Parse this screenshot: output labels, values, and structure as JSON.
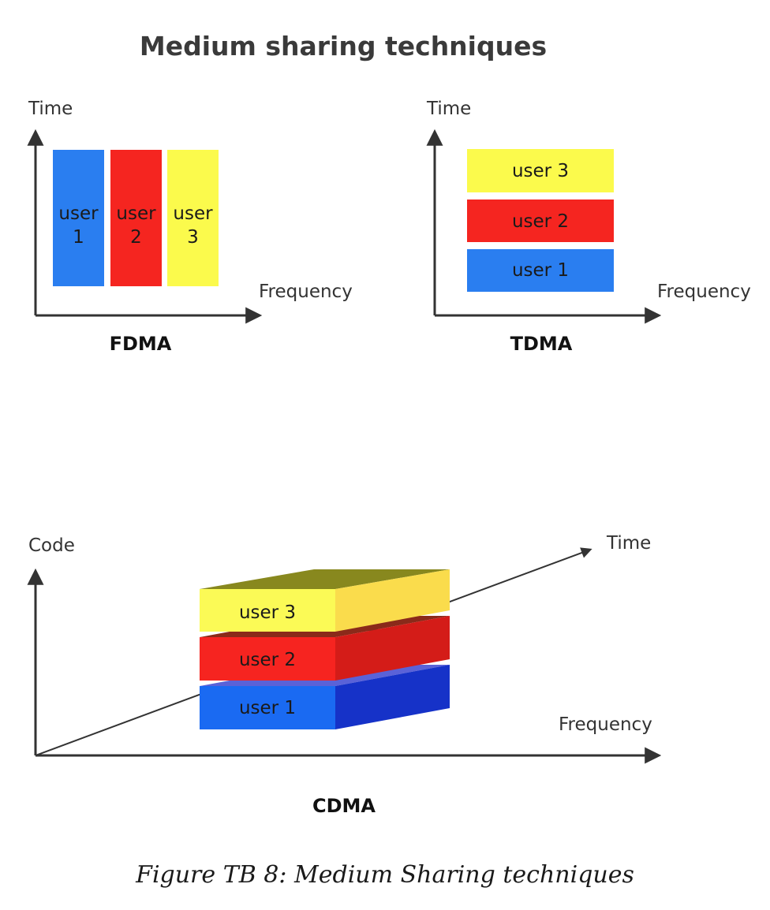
{
  "title": "Medium sharing techniques",
  "colors": {
    "blue": "#2a7ef0",
    "red": "#f52520",
    "yellow": "#fbfa4c",
    "axis": "#333333"
  },
  "fdma": {
    "label": "FDMA",
    "y_axis": "Time",
    "x_axis": "Frequency",
    "blocks": [
      {
        "line1": "user",
        "line2": "1"
      },
      {
        "line1": "user",
        "line2": "2"
      },
      {
        "line1": "user",
        "line2": "3"
      }
    ]
  },
  "tdma": {
    "label": "TDMA",
    "y_axis": "Time",
    "x_axis": "Frequency",
    "blocks": [
      "user 3",
      "user 2",
      "user 1"
    ]
  },
  "cdma": {
    "label": "CDMA",
    "y_axis": "Code",
    "x_axis": "Frequency",
    "diag_axis": "Time",
    "blocks": [
      "user 3",
      "user 2",
      "user 1"
    ]
  },
  "caption": "Figure TB 8: Medium Sharing techniques"
}
